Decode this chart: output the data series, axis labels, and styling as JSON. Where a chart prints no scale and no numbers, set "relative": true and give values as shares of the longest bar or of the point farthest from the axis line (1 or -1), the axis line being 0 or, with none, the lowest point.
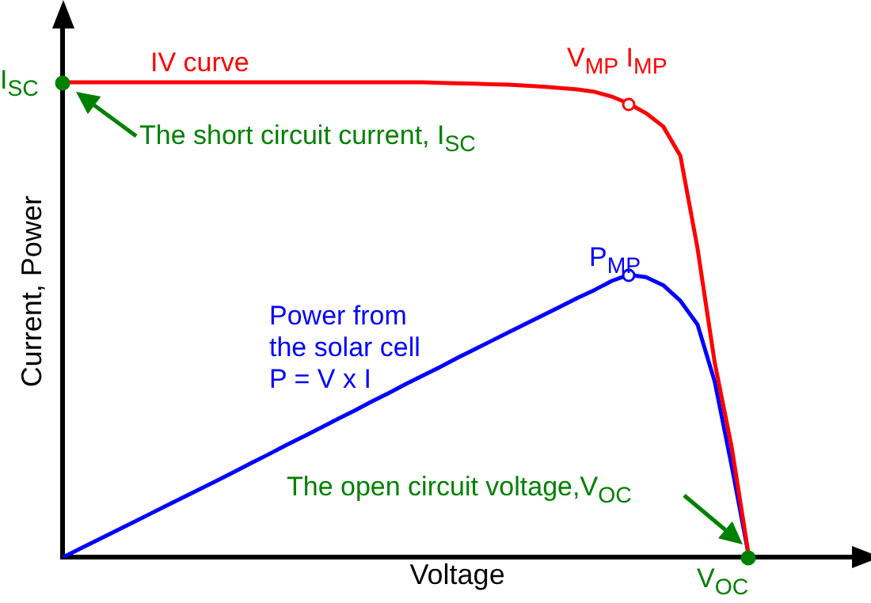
{
  "chart_data": {
    "type": "line",
    "relative": true,
    "xlabel": "Voltage",
    "ylabel": "Current, Power",
    "grid": false,
    "legend": false,
    "marker": "none",
    "line_style": "solid",
    "categories": [
      null,
      null,
      null,
      null,
      null,
      null,
      null,
      null,
      null,
      null,
      null,
      null,
      null,
      null,
      null,
      null,
      null,
      null,
      null,
      null,
      null,
      null,
      null,
      null,
      null,
      null,
      null,
      null,
      null,
      null,
      null,
      null,
      null,
      null,
      null,
      null,
      null,
      null,
      null,
      null,
      null,
      null,
      null,
      null,
      null,
      null,
      null
    ],
    "series": [
      {
        "name": "IV curve",
        "color": "#ff0000",
        "values": [
          1,
          1,
          1,
          1,
          1,
          1,
          1,
          1,
          1,
          1,
          1,
          1,
          1,
          1,
          1,
          1,
          1,
          1,
          1,
          1,
          1,
          1,
          0.999,
          0.998,
          0.997,
          0.996,
          0.995,
          0.993,
          0.991,
          0.988,
          0.985,
          0.98,
          0.97,
          0.955,
          0.935,
          0.907,
          0.845,
          0.65,
          0.41,
          0.23,
          0,
          null,
          null,
          null,
          null,
          null,
          null
        ]
      },
      {
        "name": "Power from\nthe solar cell\nP = V x I",
        "color": "#0000ff",
        "values": [
          0,
          0.018,
          0.036,
          0.054,
          0.072,
          0.09,
          0.108,
          0.126,
          0.144,
          0.162,
          0.18,
          0.199,
          0.217,
          0.236,
          0.254,
          0.272,
          0.291,
          0.309,
          0.328,
          0.346,
          0.365,
          0.383,
          0.401,
          0.42,
          0.438,
          0.456,
          0.474,
          0.492,
          0.51,
          0.528,
          0.546,
          0.563,
          0.582,
          0.595,
          0.59,
          0.573,
          0.54,
          0.49,
          0.37,
          0.19,
          0,
          null,
          null,
          null,
          null,
          null,
          null
        ]
      }
    ],
    "annotations": [
      "The short circuit current, I$_{SC}$",
      "The open circuit voltage,V$_{OC}$",
      "I$_{SC}$",
      "V$_{OC}$",
      "V$_{MP}$ I$_{MP}$",
      "P$_{MP}$"
    ]
  }
}
